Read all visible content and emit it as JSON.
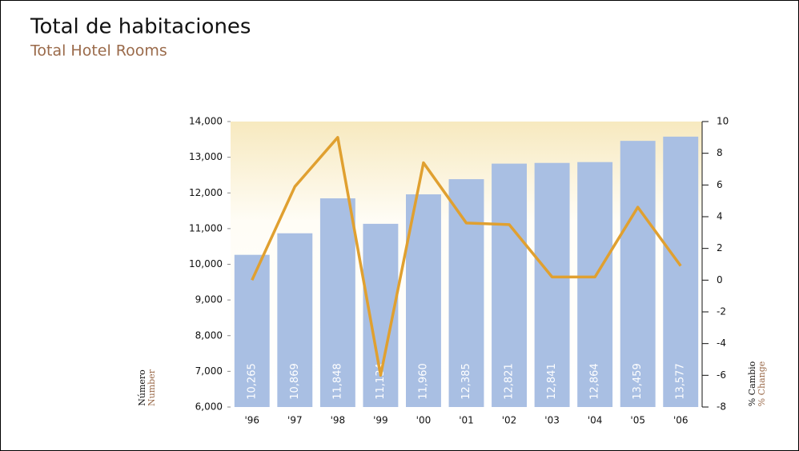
{
  "chart_data": {
    "type": "bar_line",
    "title": "Total de habitaciones",
    "subtitle": "Total Hotel Rooms",
    "ylabel": [
      "Número",
      "Number"
    ],
    "y2label": [
      "% Cambio",
      "% Change"
    ],
    "categories": [
      "'96",
      "'97",
      "'98",
      "'99",
      "'00",
      "'01",
      "'02",
      "'03",
      "'04",
      "'05",
      "'06"
    ],
    "series": [
      {
        "type": "bar",
        "color": "#a9bfe3",
        "values": [
          10265,
          10869,
          11848,
          11134,
          11960,
          12385,
          12821,
          12841,
          12864,
          13459,
          13577
        ],
        "value_labels": [
          "10,265",
          "10,869",
          "11,848",
          "11,134",
          "11,960",
          "12,385",
          "12,821",
          "12,841",
          "12,864",
          "13,459",
          "13,577"
        ]
      },
      {
        "type": "line",
        "axis": "y2",
        "color": "#e0a030",
        "values": [
          0,
          5.9,
          9.0,
          -6.0,
          7.4,
          3.6,
          3.5,
          0.2,
          0.2,
          4.6,
          0.9
        ]
      }
    ],
    "ylim": [
      6000,
      14000
    ],
    "yticks": [
      {
        "value": 6000,
        "label": "6,000"
      },
      {
        "value": 7000,
        "label": "7,000"
      },
      {
        "value": 8000,
        "label": "8,000"
      },
      {
        "value": 9000,
        "label": "9,000"
      },
      {
        "value": 10000,
        "label": "10,000"
      },
      {
        "value": 11000,
        "label": "11,000"
      },
      {
        "value": 12000,
        "label": "12,000"
      },
      {
        "value": 13000,
        "label": "13,000"
      },
      {
        "value": 14000,
        "label": "14,000"
      }
    ],
    "y2lim": [
      -8,
      10
    ],
    "y2ticks": [
      -8,
      -6,
      -4,
      -2,
      0,
      2,
      4,
      6,
      8,
      10
    ]
  }
}
